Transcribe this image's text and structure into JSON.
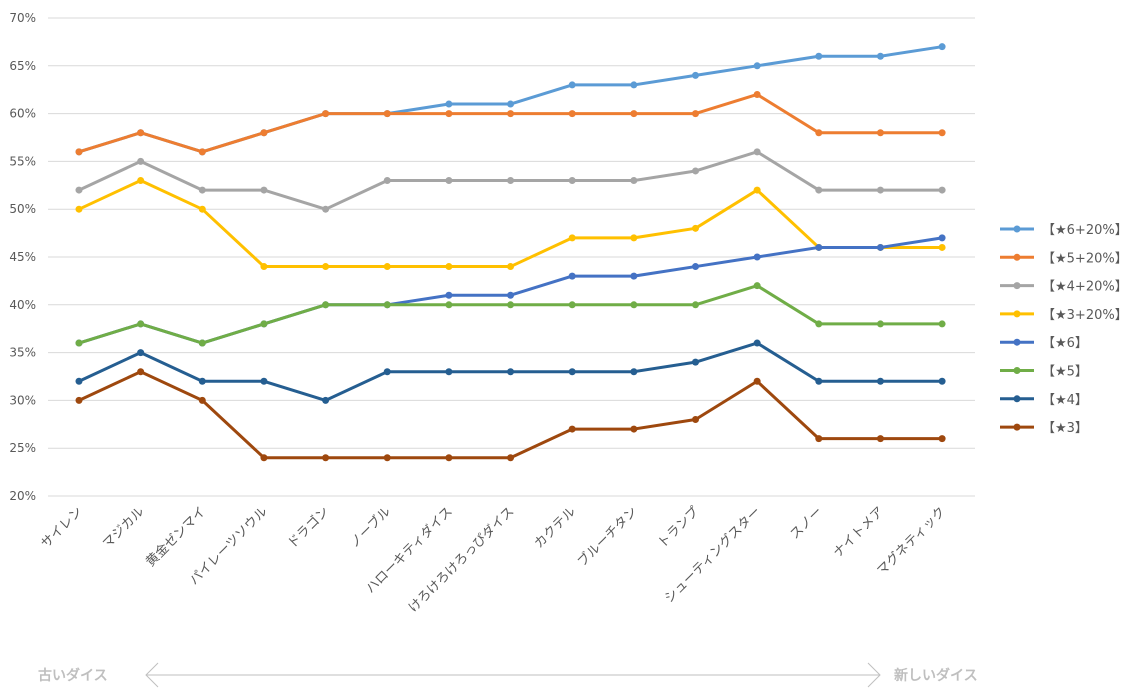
{
  "chart_data": {
    "type": "line",
    "title": "",
    "xlabel": "",
    "ylabel": "",
    "ylim": [
      20,
      70
    ],
    "y_ticks": [
      "20%",
      "25%",
      "30%",
      "35%",
      "40%",
      "45%",
      "50%",
      "55%",
      "60%",
      "65%",
      "70%"
    ],
    "y_tick_values": [
      20,
      25,
      30,
      35,
      40,
      45,
      50,
      55,
      60,
      65,
      70
    ],
    "grid": true,
    "legend_position": "right",
    "categories": [
      "サイレン",
      "マジカル",
      "黄金ゼンマイ",
      "パイレーツソウル",
      "ドラゴン",
      "ノーブル",
      "ハローキティダイス",
      "けろけろけろっぴダイス",
      "カクテル",
      "ブルーチタン",
      "トランプ",
      "シューティングスター",
      "スノー",
      "ナイトメア",
      "マグネティック"
    ],
    "series": [
      {
        "name": "【★6+20%】",
        "color": "#5b9bd5",
        "values": [
          56,
          58,
          56,
          58,
          60,
          60,
          61,
          61,
          63,
          63,
          64,
          65,
          66,
          66,
          67
        ]
      },
      {
        "name": "【★5+20%】",
        "color": "#ed7d31",
        "values": [
          56,
          58,
          56,
          58,
          60,
          60,
          60,
          60,
          60,
          60,
          60,
          62,
          58,
          58,
          58
        ]
      },
      {
        "name": "【★4+20%】",
        "color": "#a5a5a5",
        "values": [
          52,
          55,
          52,
          52,
          50,
          53,
          53,
          53,
          53,
          53,
          54,
          56,
          52,
          52,
          52
        ]
      },
      {
        "name": "【★3+20%】",
        "color": "#ffc000",
        "values": [
          50,
          53,
          50,
          44,
          44,
          44,
          44,
          44,
          47,
          47,
          48,
          52,
          46,
          46,
          46
        ]
      },
      {
        "name": "【★6】",
        "color": "#4472c4",
        "values": [
          36,
          38,
          36,
          38,
          40,
          40,
          41,
          41,
          43,
          43,
          44,
          45,
          46,
          46,
          47
        ]
      },
      {
        "name": "【★5】",
        "color": "#70ad47",
        "values": [
          36,
          38,
          36,
          38,
          40,
          40,
          40,
          40,
          40,
          40,
          40,
          42,
          38,
          38,
          38
        ]
      },
      {
        "name": "【★4】",
        "color": "#255e91",
        "values": [
          32,
          35,
          32,
          32,
          30,
          33,
          33,
          33,
          33,
          33,
          34,
          36,
          32,
          32,
          32
        ]
      },
      {
        "name": "【★3】",
        "color": "#9e480e",
        "values": [
          30,
          33,
          30,
          24,
          24,
          24,
          24,
          24,
          27,
          27,
          28,
          32,
          26,
          26,
          26
        ]
      }
    ],
    "annotations": {
      "left": "古いダイス",
      "right": "新しいダイス"
    }
  }
}
